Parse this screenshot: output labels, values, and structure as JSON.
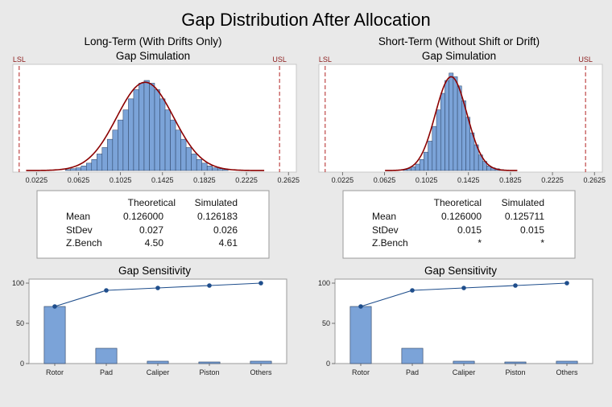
{
  "title": "Gap Distribution After Allocation",
  "panels": [
    {
      "title_line1": "Long-Term (With Drifts Only)",
      "title_line2": "Gap Simulation",
      "table": {
        "headers": [
          "",
          "Theoretical",
          "Simulated"
        ],
        "rows": [
          {
            "label": "Mean",
            "theoretical": "0.126000",
            "simulated": "0.126183"
          },
          {
            "label": "StDev",
            "theoretical": "0.027",
            "simulated": "0.026"
          },
          {
            "label": "Z.Bench",
            "theoretical": "4.50",
            "simulated": "4.61"
          }
        ]
      },
      "sensitivity_title": "Gap Sensitivity"
    },
    {
      "title_line1": "Short-Term (Without Shift or Drift)",
      "title_line2": "Gap Simulation",
      "table": {
        "headers": [
          "",
          "Theoretical",
          "Simulated"
        ],
        "rows": [
          {
            "label": "Mean",
            "theoretical": "0.126000",
            "simulated": "0.125711"
          },
          {
            "label": "StDev",
            "theoretical": "0.015",
            "simulated": "0.015"
          },
          {
            "label": "Z.Bench",
            "theoretical": "*",
            "simulated": "*"
          }
        ]
      },
      "sensitivity_title": "Gap Sensitivity"
    }
  ],
  "colors": {
    "bar_fill": "#7ba3d8",
    "bar_stroke": "#2a3f5f",
    "limit_line": "#b22222",
    "curve": "#8b0000",
    "pareto_line": "#1f4e8c"
  },
  "chart_data": [
    {
      "type": "histogram",
      "name": "long-term",
      "xlim": [
        0.0,
        0.27
      ],
      "x_ticks": [
        "0.0225",
        "0.0625",
        "0.1025",
        "0.1425",
        "0.1825",
        "0.2225",
        "0.2625"
      ],
      "x_tick_values": [
        0.0225,
        0.0625,
        0.1025,
        0.1425,
        0.1825,
        0.2225,
        0.2625
      ],
      "limits": [
        {
          "label": "LSL",
          "value": 0.006
        },
        {
          "label": "USL",
          "value": 0.254
        }
      ],
      "bin_start": 0.05,
      "bin_width": 0.005,
      "counts": [
        1,
        2,
        3,
        5,
        8,
        12,
        18,
        25,
        34,
        44,
        55,
        66,
        78,
        88,
        95,
        98,
        95,
        88,
        78,
        66,
        55,
        44,
        34,
        25,
        18,
        12,
        8,
        5,
        3,
        2,
        1
      ],
      "ymax": 112,
      "curve": {
        "mean": 0.126,
        "sd": 0.027,
        "peak": 96
      }
    },
    {
      "type": "histogram",
      "name": "short-term",
      "xlim": [
        0.0,
        0.27
      ],
      "x_ticks": [
        "0.0225",
        "0.0625",
        "0.1025",
        "0.1425",
        "0.1825",
        "0.2225",
        "0.2625"
      ],
      "x_tick_values": [
        0.0225,
        0.0625,
        0.1025,
        0.1425,
        0.1825,
        0.2225,
        0.2625
      ],
      "limits": [
        {
          "label": "LSL",
          "value": 0.006
        },
        {
          "label": "USL",
          "value": 0.254
        }
      ],
      "bin_start": 0.08,
      "bin_width": 0.004,
      "counts": [
        1,
        2,
        4,
        7,
        12,
        20,
        32,
        48,
        66,
        84,
        98,
        106,
        102,
        92,
        76,
        58,
        41,
        28,
        17,
        10,
        5,
        3,
        2,
        1
      ],
      "ymax": 112,
      "curve": {
        "mean": 0.126,
        "sd": 0.015,
        "peak": 102
      }
    },
    {
      "type": "bar",
      "name": "sensitivity-long-term",
      "categories": [
        "Rotor",
        "Pad",
        "Caliper",
        "Piston",
        "Others"
      ],
      "values": [
        71,
        19,
        3,
        2,
        3
      ],
      "cumulative": [
        71,
        91,
        94,
        97,
        100
      ],
      "ylim": [
        0,
        100
      ],
      "y_ticks": [
        0,
        50,
        100
      ]
    },
    {
      "type": "bar",
      "name": "sensitivity-short-term",
      "categories": [
        "Rotor",
        "Pad",
        "Caliper",
        "Piston",
        "Others"
      ],
      "values": [
        71,
        19,
        3,
        2,
        3
      ],
      "cumulative": [
        71,
        91,
        94,
        97,
        100
      ],
      "ylim": [
        0,
        100
      ],
      "y_ticks": [
        0,
        50,
        100
      ]
    }
  ]
}
